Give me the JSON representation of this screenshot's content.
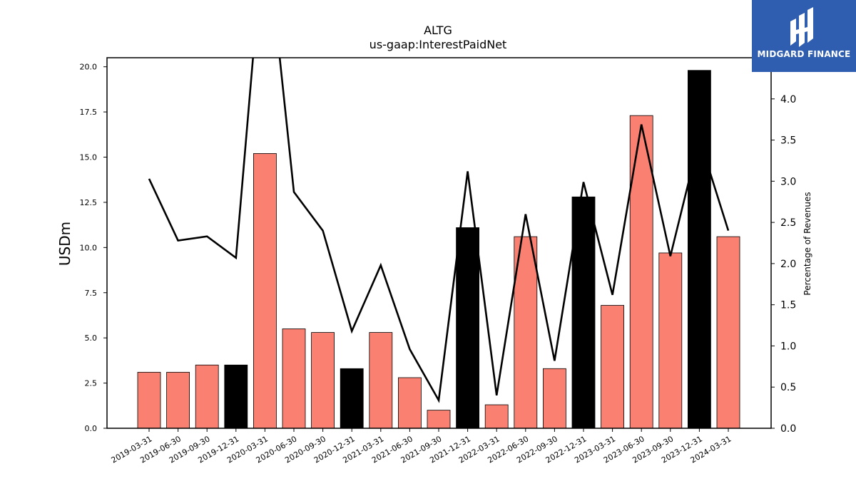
{
  "chart_data": {
    "type": "bar",
    "title": "ALTG",
    "subtitle": "us-gaap:InterestPaidNet",
    "ylabel": "USDm",
    "y2label": "Percentage of Revenues",
    "categories": [
      "2019-03-31",
      "2019-06-30",
      "2019-09-30",
      "2019-12-31",
      "2020-03-31",
      "2020-06-30",
      "2020-09-30",
      "2020-12-31",
      "2021-03-31",
      "2021-06-30",
      "2021-09-30",
      "2021-12-31",
      "2022-03-31",
      "2022-06-30",
      "2022-09-30",
      "2022-12-31",
      "2023-03-31",
      "2023-06-30",
      "2023-09-30",
      "2023-12-31",
      "2024-03-31"
    ],
    "series": [
      {
        "type": "bar",
        "axis": "left",
        "values": [
          3.1,
          3.1,
          3.5,
          3.5,
          15.2,
          5.5,
          5.3,
          3.3,
          5.3,
          2.8,
          1.0,
          11.1,
          1.3,
          10.6,
          3.3,
          12.8,
          6.8,
          17.3,
          9.7,
          19.8,
          10.6
        ],
        "highlight": [
          false,
          false,
          false,
          true,
          false,
          false,
          false,
          true,
          false,
          false,
          false,
          true,
          false,
          false,
          false,
          true,
          false,
          false,
          false,
          true,
          false
        ]
      },
      {
        "type": "line",
        "axis": "right",
        "values": [
          3.03,
          2.28,
          2.33,
          2.07,
          6.2,
          2.87,
          2.4,
          1.18,
          1.98,
          0.96,
          0.34,
          3.12,
          0.4,
          2.6,
          0.82,
          2.99,
          1.62,
          3.69,
          2.09,
          3.52,
          2.4
        ]
      }
    ],
    "ylim": [
      0,
      20.5
    ],
    "y2lim": [
      0,
      4.5
    ],
    "yticks": [
      "0.0",
      "2.5",
      "5.0",
      "7.5",
      "10.0",
      "12.5",
      "15.0",
      "17.5",
      "20.0"
    ],
    "y2ticks": [
      "0.0",
      "0.5",
      "1.0",
      "1.5",
      "2.0",
      "2.5",
      "3.0",
      "3.5",
      "4.0"
    ],
    "colors": {
      "bar": "#fa8072",
      "highlight": "#000000",
      "line": "#000000"
    },
    "grid": false,
    "legend": "none"
  },
  "logo": {
    "text": "MIDGARD FINANCE",
    "background": "#2f5db0"
  }
}
